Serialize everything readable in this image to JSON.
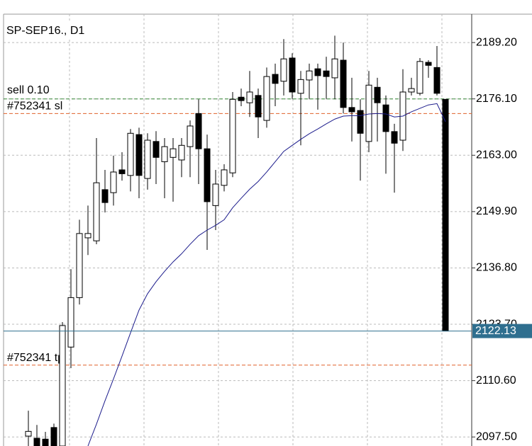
{
  "chart_data": {
    "type": "candlestick",
    "title": "SP-SEP16., D1",
    "ylim": [
      2095.4,
      2195.8
    ],
    "yticks": [
      {
        "value": 2189.2,
        "label": "2189.20"
      },
      {
        "value": 2176.1,
        "label": "2176.10"
      },
      {
        "value": 2163.0,
        "label": "2163.00"
      },
      {
        "value": 2149.9,
        "label": "2149.90"
      },
      {
        "value": 2136.8,
        "label": "2136.80"
      },
      {
        "value": 2123.7,
        "label": "2123.70"
      },
      {
        "value": 2110.6,
        "label": "2110.60"
      },
      {
        "value": 2097.5,
        "label": "2097.50"
      }
    ],
    "grid": true,
    "up_color": "#ffffff",
    "down_color": "#000000",
    "open": [
      2097.7,
      2097.2,
      2097.0,
      2099.7,
      2095.4,
      2118.4,
      2129.9,
      2143.8,
      2143.1,
      2155.0,
      2154.3,
      2159.6,
      2158.3,
      2167.8,
      2157.6,
      2166.2,
      2161.5,
      2162.5,
      2161.9,
      2165.0,
      2172.7,
      2164.5,
      2151.3,
      2156.0,
      2158.9,
      2176.5,
      2175.2,
      2176.9,
      2171.1,
      2181.8,
      2180.2,
      2185.6,
      2177.4,
      2180.5,
      2183.1,
      2182.6,
      2181.0,
      2185.1,
      2174.1,
      2173.4,
      2166.2,
      2178.8,
      2174.7,
      2168.5,
      2166.5,
      2177.7,
      2177.4,
      2184.6,
      2183.4,
      2176.0
    ],
    "high": [
      2103.6,
      2100.3,
      2098.7,
      2100.6,
      2124.2,
      2136.5,
      2148.0,
      2151.3,
      2167.0,
      2159.6,
      2162.9,
      2163.7,
      2169.1,
      2169.4,
      2168.1,
      2168.6,
      2167.0,
      2167.0,
      2167.0,
      2171.1,
      2176.0,
      2167.8,
      2159.6,
      2160.9,
      2177.7,
      2178.5,
      2182.6,
      2178.5,
      2183.4,
      2184.3,
      2190.0,
      2186.7,
      2182.6,
      2184.3,
      2184.3,
      2185.9,
      2190.8,
      2189.2,
      2181.0,
      2176.0,
      2182.6,
      2181.0,
      2176.9,
      2170.3,
      2183.0,
      2181.0,
      2185.6,
      2185.1,
      2188.4,
      2176.0
    ],
    "low": [
      2095.4,
      2095.4,
      2095.4,
      2095.4,
      2095.4,
      2113.5,
      2128.3,
      2139.8,
      2142.3,
      2149.7,
      2151.3,
      2157.1,
      2154.6,
      2153.0,
      2155.0,
      2156.3,
      2153.0,
      2152.2,
      2157.9,
      2157.9,
      2156.3,
      2141.0,
      2145.6,
      2154.6,
      2157.9,
      2174.4,
      2171.9,
      2167.0,
      2169.4,
      2174.4,
      2176.9,
      2176.0,
      2165.3,
      2176.0,
      2173.6,
      2176.0,
      2176.0,
      2172.7,
      2166.2,
      2157.1,
      2163.7,
      2166.2,
      2158.7,
      2154.3,
      2164.0,
      2176.9,
      2176.9,
      2181.0,
      2176.9,
      2122.13
    ],
    "close": [
      2098.8,
      2095.4,
      2095.4,
      2095.4,
      2123.4,
      2129.9,
      2144.8,
      2144.8,
      2156.6,
      2152.0,
      2159.1,
      2158.7,
      2168.1,
      2158.3,
      2166.5,
      2162.5,
      2165.0,
      2164.5,
      2165.3,
      2169.8,
      2164.5,
      2152.2,
      2156.3,
      2159.6,
      2176.0,
      2175.7,
      2177.7,
      2171.9,
      2181.3,
      2179.7,
      2185.4,
      2177.7,
      2180.6,
      2182.6,
      2181.5,
      2181.3,
      2185.4,
      2174.1,
      2173.1,
      2168.1,
      2179.3,
      2175.2,
      2168.5,
      2165.8,
      2177.7,
      2178.5,
      2184.8,
      2183.9,
      2177.4,
      2122.13
    ],
    "moving_average": {
      "color": "#1c1c8c",
      "values": [
        null,
        null,
        null,
        null,
        null,
        null,
        null,
        2095.4,
        2100.5,
        2105.9,
        2111.0,
        2116.3,
        2121.7,
        2127.0,
        2130.8,
        2133.6,
        2136.0,
        2138.2,
        2140.1,
        2142.3,
        2144.3,
        2145.6,
        2146.7,
        2148.0,
        2150.8,
        2153.0,
        2155.1,
        2156.9,
        2159.1,
        2161.5,
        2163.9,
        2165.3,
        2166.7,
        2168.0,
        2169.1,
        2170.3,
        2171.4,
        2172.1,
        2172.2,
        2172.2,
        2172.6,
        2172.7,
        2172.6,
        2171.9,
        2172.1,
        2173.1,
        2173.9,
        2174.7,
        2175.0,
        2170.8
      ]
    },
    "levels": [
      {
        "label": "sell 0.10",
        "value": 2176.1,
        "color": "#3a8a3a"
      },
      {
        "label": "#752341 sl",
        "value": 2172.7,
        "color": "#e0602a"
      },
      {
        "label": "#752341 tp",
        "value": 2114.2,
        "color": "#e0602a"
      }
    ],
    "last_price": {
      "value": 2122.13,
      "color": "#2f6f8f"
    }
  }
}
